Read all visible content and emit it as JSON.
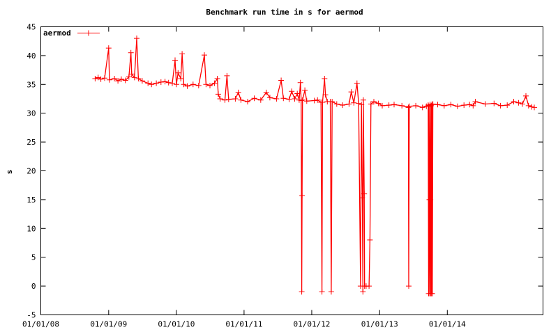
{
  "chart_data": {
    "type": "line",
    "title": "Benchmark run time in s for aermod",
    "xlabel": "",
    "ylabel": "s",
    "ylim": [
      -5,
      45
    ],
    "yticks": [
      -5,
      0,
      5,
      10,
      15,
      20,
      25,
      30,
      35,
      40,
      45
    ],
    "xlim": [
      "2008-01-01",
      "2015-06-01"
    ],
    "xticks": [
      "01/01/08",
      "01/01/09",
      "01/01/10",
      "01/01/11",
      "01/01/12",
      "01/01/13",
      "01/01/14"
    ],
    "xtick_dates": [
      "2008-01-01",
      "2009-01-01",
      "2010-01-01",
      "2011-01-01",
      "2012-01-01",
      "2013-01-01",
      "2014-01-01"
    ],
    "legend_position": "top-left",
    "grid": false,
    "series": [
      {
        "name": "aermod",
        "color": "#ff0000",
        "marker": "plus",
        "points": [
          [
            "2008-10-20",
            36.0
          ],
          [
            "2008-11-05",
            36.2
          ],
          [
            "2008-11-20",
            35.9
          ],
          [
            "2008-12-10",
            36.1
          ],
          [
            "2009-01-01",
            41.3
          ],
          [
            "2009-01-05",
            35.8
          ],
          [
            "2009-02-01",
            36.0
          ],
          [
            "2009-02-20",
            35.6
          ],
          [
            "2009-03-10",
            35.9
          ],
          [
            "2009-04-01",
            35.7
          ],
          [
            "2009-04-20",
            36.3
          ],
          [
            "2009-05-01",
            40.5
          ],
          [
            "2009-05-05",
            36.8
          ],
          [
            "2009-05-20",
            36.2
          ],
          [
            "2009-06-01",
            43.0
          ],
          [
            "2009-06-10",
            36.0
          ],
          [
            "2009-07-01",
            35.6
          ],
          [
            "2009-08-01",
            35.2
          ],
          [
            "2009-08-20",
            35.0
          ],
          [
            "2009-09-15",
            35.2
          ],
          [
            "2009-10-10",
            35.4
          ],
          [
            "2009-11-01",
            35.5
          ],
          [
            "2009-11-20",
            35.3
          ],
          [
            "2009-12-10",
            35.2
          ],
          [
            "2009-12-25",
            39.2
          ],
          [
            "2010-01-01",
            35.0
          ],
          [
            "2010-01-10",
            37.0
          ],
          [
            "2010-01-25",
            36.0
          ],
          [
            "2010-02-01",
            40.3
          ],
          [
            "2010-02-10",
            35.0
          ],
          [
            "2010-03-01",
            34.7
          ],
          [
            "2010-04-01",
            35.0
          ],
          [
            "2010-05-01",
            34.8
          ],
          [
            "2010-06-01",
            40.1
          ],
          [
            "2010-06-10",
            35.0
          ],
          [
            "2010-07-01",
            34.8
          ],
          [
            "2010-07-25",
            35.2
          ],
          [
            "2010-08-10",
            36.0
          ],
          [
            "2010-08-15",
            33.3
          ],
          [
            "2010-08-25",
            32.5
          ],
          [
            "2010-09-20",
            32.3
          ],
          [
            "2010-10-01",
            36.5
          ],
          [
            "2010-10-10",
            32.4
          ],
          [
            "2010-11-15",
            32.5
          ],
          [
            "2010-12-01",
            33.6
          ],
          [
            "2010-12-15",
            32.3
          ],
          [
            "2011-01-20",
            32.0
          ],
          [
            "2011-02-25",
            32.6
          ],
          [
            "2011-04-01",
            32.3
          ],
          [
            "2011-05-01",
            33.6
          ],
          [
            "2011-05-20",
            32.7
          ],
          [
            "2011-06-25",
            32.5
          ],
          [
            "2011-07-20",
            35.7
          ],
          [
            "2011-08-01",
            32.6
          ],
          [
            "2011-09-01",
            32.4
          ],
          [
            "2011-09-15",
            33.8
          ],
          [
            "2011-10-01",
            32.5
          ],
          [
            "2011-10-15",
            33.4
          ],
          [
            "2011-10-25",
            32.3
          ],
          [
            "2011-11-01",
            35.3
          ],
          [
            "2011-11-05",
            32.2
          ],
          [
            "2011-11-08",
            -1.0
          ],
          [
            "2011-11-10",
            15.7
          ],
          [
            "2011-11-12",
            32.3
          ],
          [
            "2011-11-25",
            34.0
          ],
          [
            "2011-12-05",
            32.1
          ],
          [
            "2012-01-15",
            32.2
          ],
          [
            "2012-02-01",
            32.3
          ],
          [
            "2012-02-20",
            31.9
          ],
          [
            "2012-02-25",
            -1.0
          ],
          [
            "2012-02-28",
            31.9
          ],
          [
            "2012-03-10",
            36.0
          ],
          [
            "2012-03-15",
            33.2
          ],
          [
            "2012-03-25",
            32.0
          ],
          [
            "2012-04-10",
            32.0
          ],
          [
            "2012-04-15",
            -1.0
          ],
          [
            "2012-04-20",
            32.0
          ],
          [
            "2012-05-15",
            31.6
          ],
          [
            "2012-06-15",
            31.4
          ],
          [
            "2012-07-20",
            31.6
          ],
          [
            "2012-08-01",
            33.7
          ],
          [
            "2012-08-15",
            31.8
          ],
          [
            "2012-09-01",
            35.2
          ],
          [
            "2012-09-10",
            31.7
          ],
          [
            "2012-09-20",
            0.0
          ],
          [
            "2012-09-25",
            31.5
          ],
          [
            "2012-09-30",
            15.3
          ],
          [
            "2012-10-03",
            -1.0
          ],
          [
            "2012-10-05",
            32.3
          ],
          [
            "2012-10-10",
            16.0
          ],
          [
            "2012-10-12",
            0.0
          ],
          [
            "2012-10-20",
            0.0
          ],
          [
            "2012-11-05",
            0.0
          ],
          [
            "2012-11-10",
            8.0
          ],
          [
            "2012-11-15",
            31.6
          ],
          [
            "2012-12-01",
            32.0
          ],
          [
            "2012-12-25",
            31.7
          ],
          [
            "2013-01-15",
            31.3
          ],
          [
            "2013-02-20",
            31.4
          ],
          [
            "2013-03-20",
            31.5
          ],
          [
            "2013-05-01",
            31.3
          ],
          [
            "2013-06-05",
            31.0
          ],
          [
            "2013-06-07",
            0.0
          ],
          [
            "2013-06-10",
            31.2
          ],
          [
            "2013-07-15",
            31.3
          ],
          [
            "2013-08-20",
            31.0
          ],
          [
            "2013-09-10",
            31.2
          ],
          [
            "2013-09-20",
            31.4
          ],
          [
            "2013-09-22",
            -1.3
          ],
          [
            "2013-09-24",
            31.2
          ],
          [
            "2013-09-26",
            15.0
          ],
          [
            "2013-09-28",
            -1.3
          ],
          [
            "2013-09-30",
            31.5
          ],
          [
            "2013-10-02",
            15.0
          ],
          [
            "2013-10-04",
            -1.3
          ],
          [
            "2013-10-06",
            31.3
          ],
          [
            "2013-10-08",
            -1.3
          ],
          [
            "2013-10-10",
            31.5
          ],
          [
            "2013-10-12",
            -1.3
          ],
          [
            "2013-10-15",
            31.6
          ],
          [
            "2013-11-10",
            31.5
          ],
          [
            "2013-12-15",
            31.3
          ],
          [
            "2014-01-20",
            31.5
          ],
          [
            "2014-02-25",
            31.2
          ],
          [
            "2014-04-01",
            31.4
          ],
          [
            "2014-05-01",
            31.5
          ],
          [
            "2014-05-20",
            31.3
          ],
          [
            "2014-06-01",
            32.0
          ],
          [
            "2014-07-25",
            31.6
          ],
          [
            "2014-09-10",
            31.7
          ],
          [
            "2014-10-15",
            31.3
          ],
          [
            "2014-11-20",
            31.4
          ],
          [
            "2014-12-25",
            32.0
          ],
          [
            "2015-01-20",
            31.8
          ],
          [
            "2015-02-10",
            31.6
          ],
          [
            "2015-03-01",
            33.0
          ],
          [
            "2015-03-15",
            31.3
          ],
          [
            "2015-04-01",
            31.1
          ],
          [
            "2015-04-15",
            31.0
          ]
        ]
      }
    ]
  }
}
